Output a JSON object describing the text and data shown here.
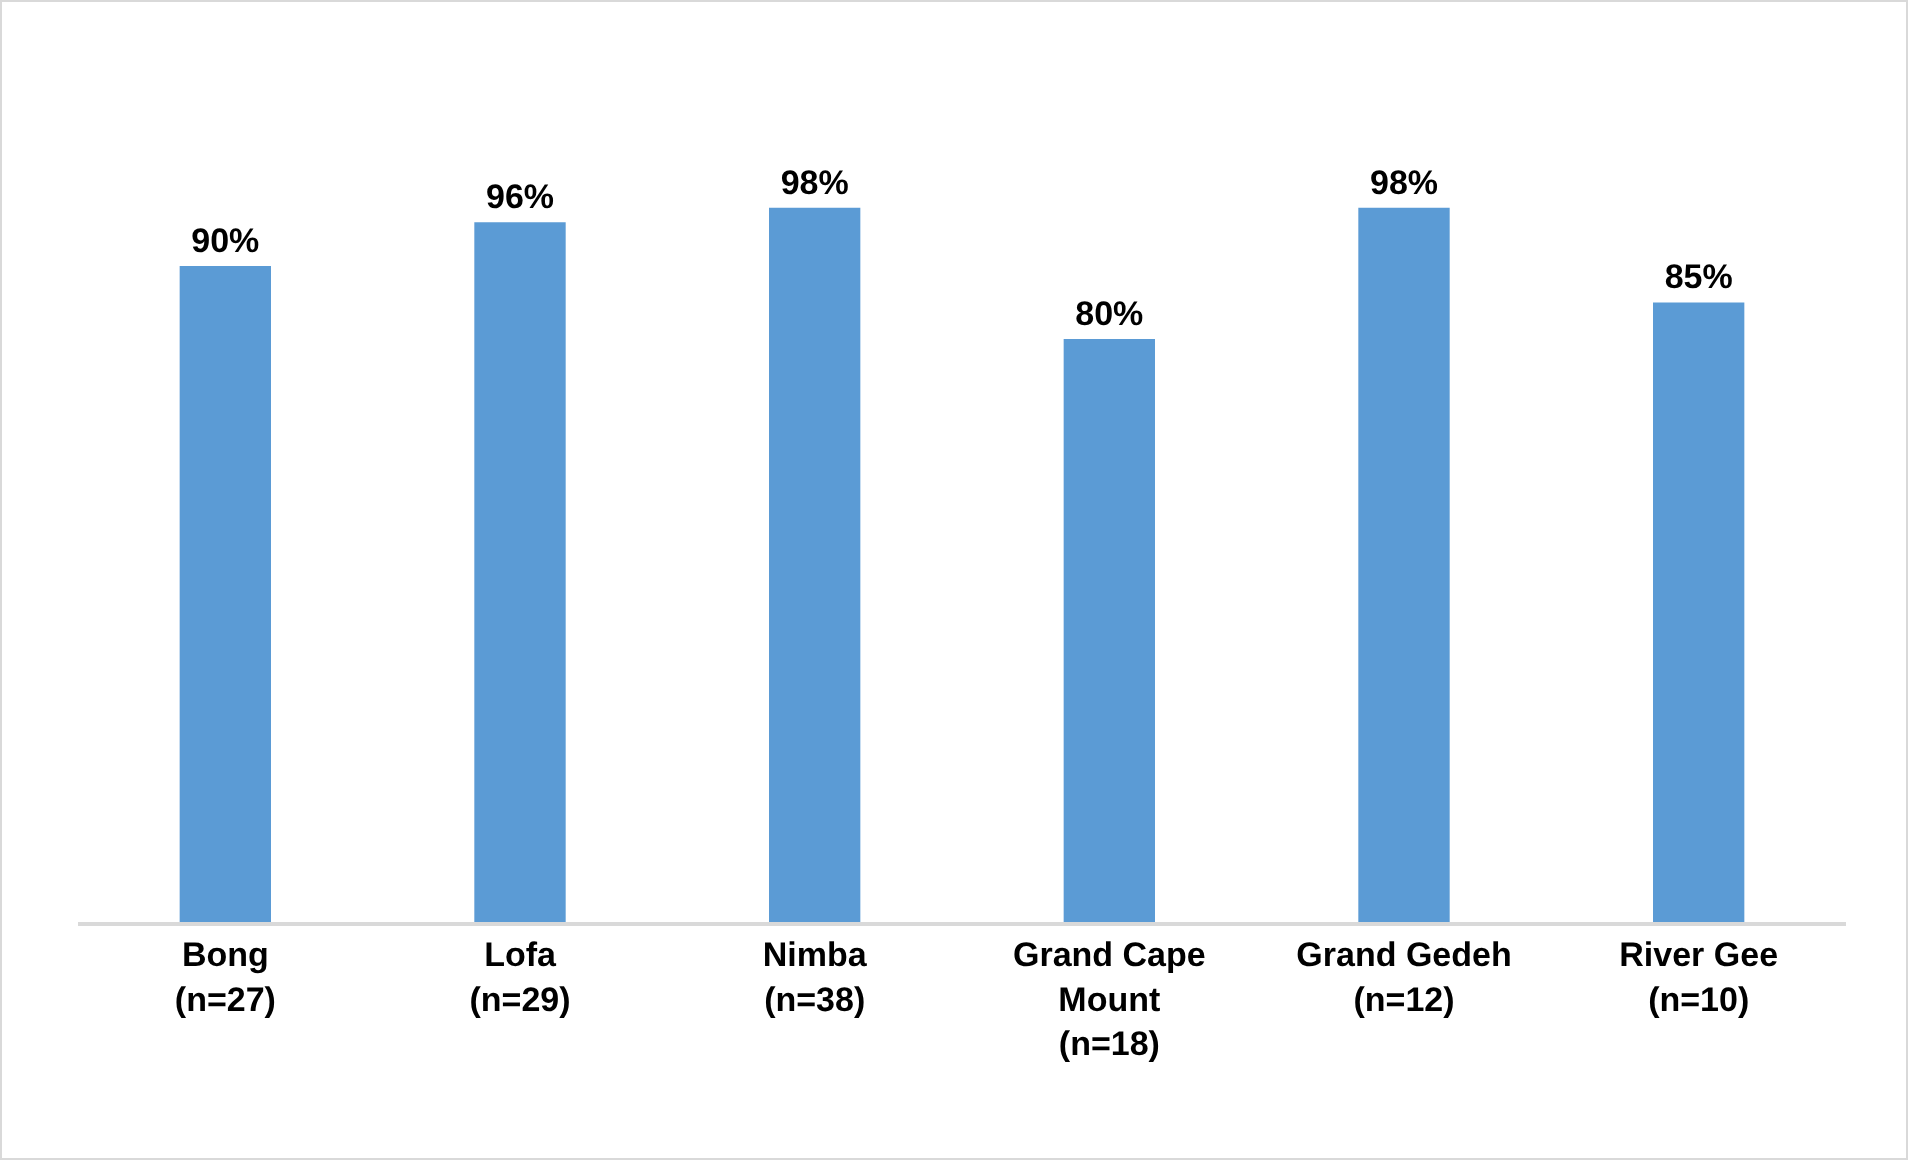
{
  "chart_data": {
    "type": "bar",
    "categories": [
      "Bong\n(n=27)",
      "Lofa\n(n=29)",
      "Nimba\n(n=38)",
      "Grand Cape\nMount\n(n=18)",
      "Grand Gedeh\n(n=12)",
      "River Gee\n(n=10)"
    ],
    "values": [
      90,
      96,
      98,
      80,
      98,
      85
    ],
    "value_labels": [
      "90%",
      "96%",
      "98%",
      "80%",
      "98%",
      "85%"
    ],
    "color": "#5b9bd5",
    "grid": false,
    "legend": false
  }
}
